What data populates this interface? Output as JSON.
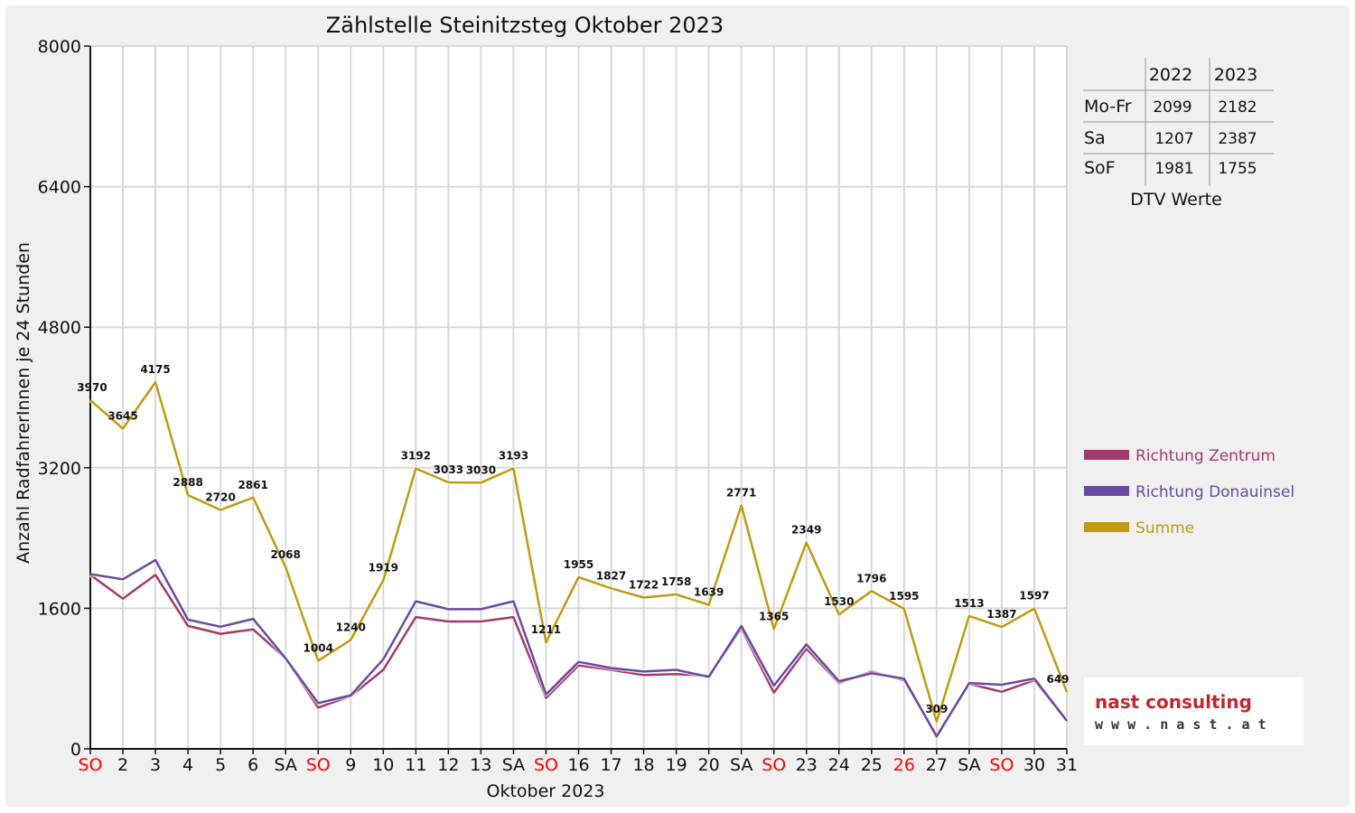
{
  "chart_data": {
    "type": "line",
    "title": "Zählstelle Steinitzsteg Oktober 2023",
    "xlabel": "Oktober 2023",
    "ylabel": "Anzahl RadfahrerInnen je 24 Stunden",
    "ylim": [
      0,
      8000
    ],
    "yticks": [
      "0",
      "1600",
      "3200",
      "4800",
      "6400",
      "8000"
    ],
    "grid": true,
    "legend_position": "right",
    "categories": [
      "SO",
      "2",
      "3",
      "4",
      "5",
      "6",
      "SA",
      "SO",
      "9",
      "10",
      "11",
      "12",
      "13",
      "SA",
      "SO",
      "16",
      "17",
      "18",
      "19",
      "20",
      "SA",
      "SO",
      "23",
      "24",
      "25",
      "26",
      "27",
      "SA",
      "SO",
      "30",
      "31"
    ],
    "red_categories": [
      0,
      7,
      14,
      21,
      25,
      28
    ],
    "series": [
      {
        "name": "Richtung Zentrum",
        "color": "#a23a6a",
        "values": [
          1980,
          1710,
          1980,
          1400,
          1310,
          1360,
          1030,
          470,
          600,
          900,
          1500,
          1450,
          1450,
          1500,
          580,
          950,
          900,
          840,
          850,
          830,
          1370,
          640,
          1140,
          750,
          880,
          780,
          150,
          740,
          650,
          780,
          320
        ]
      },
      {
        "name": "Richtung Donauinsel",
        "color": "#6a4aa0",
        "values": [
          1990,
          1930,
          2150,
          1470,
          1390,
          1480,
          1030,
          520,
          610,
          1020,
          1680,
          1590,
          1590,
          1680,
          620,
          990,
          920,
          880,
          900,
          820,
          1400,
          720,
          1190,
          770,
          860,
          800,
          140,
          750,
          730,
          800,
          320
        ]
      },
      {
        "name": "Summe",
        "color": "#c09a10",
        "values": [
          3970,
          3645,
          4175,
          2888,
          2720,
          2861,
          2068,
          1004,
          1240,
          1919,
          3192,
          3033,
          3030,
          3193,
          1211,
          1955,
          1827,
          1722,
          1758,
          1639,
          2771,
          1365,
          2349,
          1530,
          1796,
          1595,
          309,
          1513,
          1387,
          1597,
          649
        ]
      }
    ]
  },
  "dtv_table": {
    "caption": "DTV Werte",
    "columns": [
      "2022",
      "2023"
    ],
    "rows": [
      {
        "label": "Mo-Fr",
        "values": [
          "2099",
          "2182"
        ]
      },
      {
        "label": "Sa",
        "values": [
          "1207",
          "2387"
        ]
      },
      {
        "label": "SoF",
        "values": [
          "1981",
          "1755"
        ]
      }
    ]
  },
  "logo": {
    "brand": "nast consulting",
    "url": "w w w . n a s t . a t"
  }
}
